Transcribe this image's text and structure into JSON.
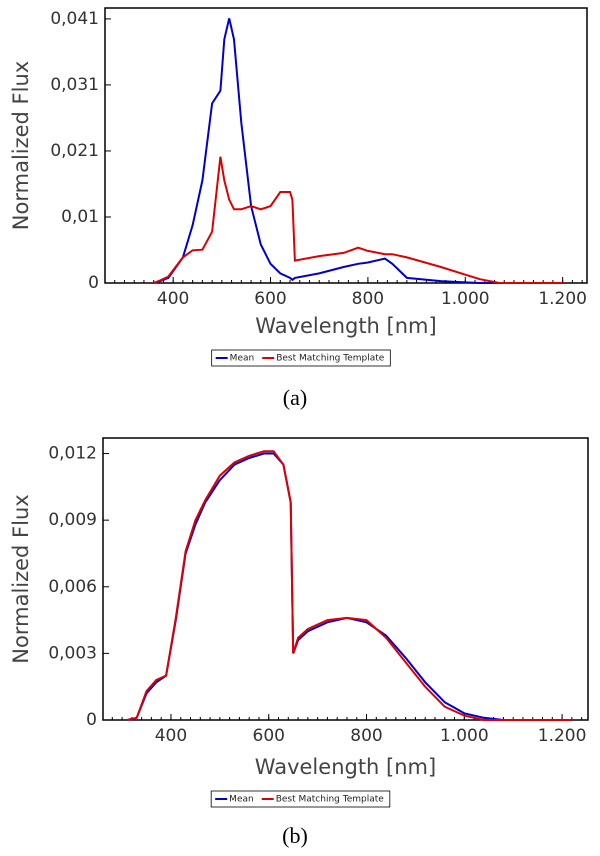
{
  "chart_data": [
    {
      "type": "line",
      "caption": "(a)",
      "x_label": "Wavelength [nm]",
      "y_label": "Normalized Flux",
      "x": [
        360,
        370,
        390,
        420,
        440,
        460,
        480,
        497,
        505,
        515,
        525,
        540,
        560,
        580,
        600,
        620,
        640,
        645,
        650,
        700,
        750,
        780,
        800,
        835,
        850,
        880,
        950,
        1000,
        1030,
        1070,
        1200
      ],
      "series": [
        {
          "name": "Mean",
          "color": "#0000cc",
          "values": [
            0,
            0.0002,
            0.0008,
            0.004,
            0.009,
            0.016,
            0.028,
            0.03,
            0.038,
            0.0413,
            0.038,
            0.025,
            0.012,
            0.006,
            0.003,
            0.0015,
            0.0008,
            0.0005,
            0.0008,
            0.0015,
            0.0025,
            0.003,
            0.0032,
            0.0038,
            0.003,
            0.0008,
            0.0003,
            0.0001,
            0,
            0,
            0
          ]
        },
        {
          "name": "Best Matching Template",
          "color": "#dd0000",
          "values": [
            0,
            0.0003,
            0.001,
            0.004,
            0.0051,
            0.0052,
            0.008,
            0.0197,
            0.016,
            0.013,
            0.0115,
            0.0115,
            0.012,
            0.0115,
            0.012,
            0.0142,
            0.0142,
            0.013,
            0.0035,
            0.0042,
            0.0047,
            0.0055,
            0.005,
            0.0045,
            0.0045,
            0.004,
            0.0025,
            0.0013,
            0.0006,
            0,
            0
          ]
        }
      ],
      "xlim": [
        260,
        1250
      ],
      "xticks": [
        400,
        600,
        800,
        {
          "value": 1000,
          "label": "1.000"
        },
        {
          "value": 1200,
          "label": "1.200"
        }
      ],
      "ylim": [
        0,
        0.0429
      ],
      "yticks": [
        0,
        {
          "value": 0.0103,
          "label": "0,01"
        },
        {
          "value": 0.0206,
          "label": "0,021"
        },
        {
          "value": 0.0309,
          "label": "0,031"
        },
        {
          "value": 0.0412,
          "label": "0,041"
        }
      ]
    },
    {
      "type": "line",
      "caption": "(b)",
      "x_label": "Wavelength [nm]",
      "y_label": "Normalized Flux",
      "x": [
        310,
        330,
        350,
        370,
        390,
        410,
        430,
        450,
        470,
        500,
        530,
        560,
        590,
        610,
        630,
        645,
        650,
        660,
        680,
        720,
        760,
        800,
        840,
        880,
        920,
        960,
        1000,
        1040,
        1080,
        1220
      ],
      "series": [
        {
          "name": "Mean",
          "color": "#0000cc",
          "values": [
            0,
            0.0001,
            0.0012,
            0.0017,
            0.002,
            0.0045,
            0.0075,
            0.0088,
            0.0098,
            0.0108,
            0.0115,
            0.0118,
            0.012,
            0.012,
            0.0115,
            0.0098,
            0.003,
            0.0036,
            0.004,
            0.0044,
            0.0046,
            0.0044,
            0.0038,
            0.0028,
            0.0017,
            0.0008,
            0.0003,
            0.0001,
            0,
            0
          ]
        },
        {
          "name": "Best Matching Template",
          "color": "#dd0000",
          "values": [
            0,
            0.0001,
            0.0013,
            0.0018,
            0.002,
            0.0046,
            0.0076,
            0.009,
            0.0099,
            0.011,
            0.0116,
            0.0119,
            0.0121,
            0.0121,
            0.0115,
            0.0098,
            0.003,
            0.0037,
            0.0041,
            0.0045,
            0.0046,
            0.0045,
            0.0037,
            0.0026,
            0.0015,
            0.0006,
            0.0002,
            0,
            0,
            0
          ]
        }
      ],
      "xlim": [
        261,
        1253
      ],
      "xticks": [
        400,
        600,
        800,
        {
          "value": 1000,
          "label": "1.000"
        },
        {
          "value": 1200,
          "label": "1.200"
        }
      ],
      "ylim": [
        0,
        0.0127
      ],
      "yticks": [
        0,
        {
          "value": 0.003,
          "label": "0,003"
        },
        {
          "value": 0.006,
          "label": "0,006"
        },
        {
          "value": 0.009,
          "label": "0,009"
        },
        {
          "value": 0.012,
          "label": "0,012"
        }
      ]
    }
  ]
}
